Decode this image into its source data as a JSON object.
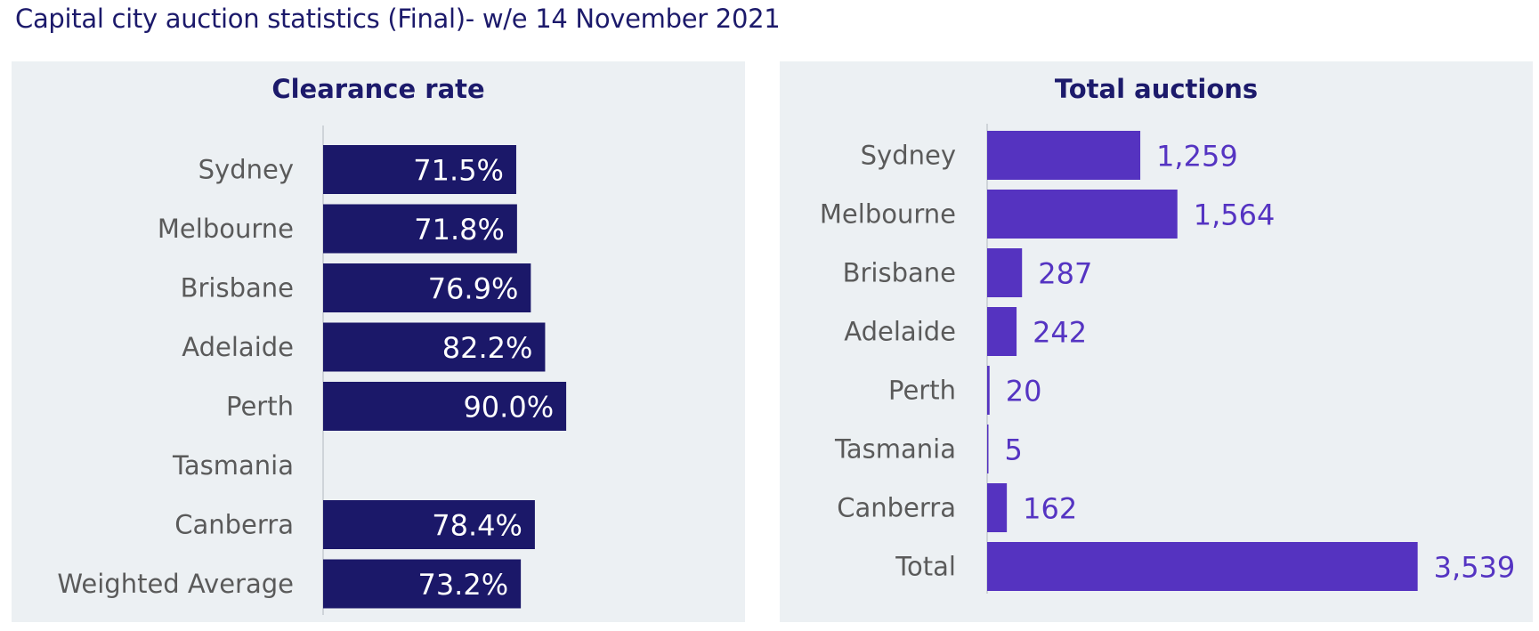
{
  "page": {
    "title": "Capital city auction statistics (Final)- w/e 14 November 2021"
  },
  "colors": {
    "clearance_bar": "#1b1869",
    "auctions_bar": "#5533c0",
    "panel_background": "#ecf0f3",
    "title_text": "#1c1a6b"
  },
  "chart_data": [
    {
      "type": "bar",
      "orientation": "horizontal",
      "title": "Clearance rate",
      "categories": [
        "Sydney",
        "Melbourne",
        "Brisbane",
        "Adelaide",
        "Perth",
        "Tasmania",
        "Canberra",
        "Weighted Average"
      ],
      "values": [
        71.5,
        71.8,
        76.9,
        82.2,
        90.0,
        null,
        78.4,
        73.2
      ],
      "data_labels": [
        "71.5%",
        "71.8%",
        "76.9%",
        "82.2%",
        "90.0%",
        "",
        "78.4%",
        "73.2%"
      ],
      "xlim": [
        0,
        145
      ],
      "xlabel": "",
      "ylabel": "",
      "grid": false,
      "data_label_position": "inside-end"
    },
    {
      "type": "bar",
      "orientation": "horizontal",
      "title": "Total auctions",
      "categories": [
        "Sydney",
        "Melbourne",
        "Brisbane",
        "Adelaide",
        "Perth",
        "Tasmania",
        "Canberra",
        "Total"
      ],
      "values": [
        1259,
        1564,
        287,
        242,
        20,
        5,
        162,
        3539
      ],
      "data_labels": [
        "1,259",
        "1,564",
        "287",
        "242",
        "20",
        "5",
        "162",
        "3,539"
      ],
      "xlim": [
        0,
        4800
      ],
      "xlabel": "",
      "ylabel": "",
      "grid": false,
      "data_label_position": "outside-end"
    }
  ]
}
